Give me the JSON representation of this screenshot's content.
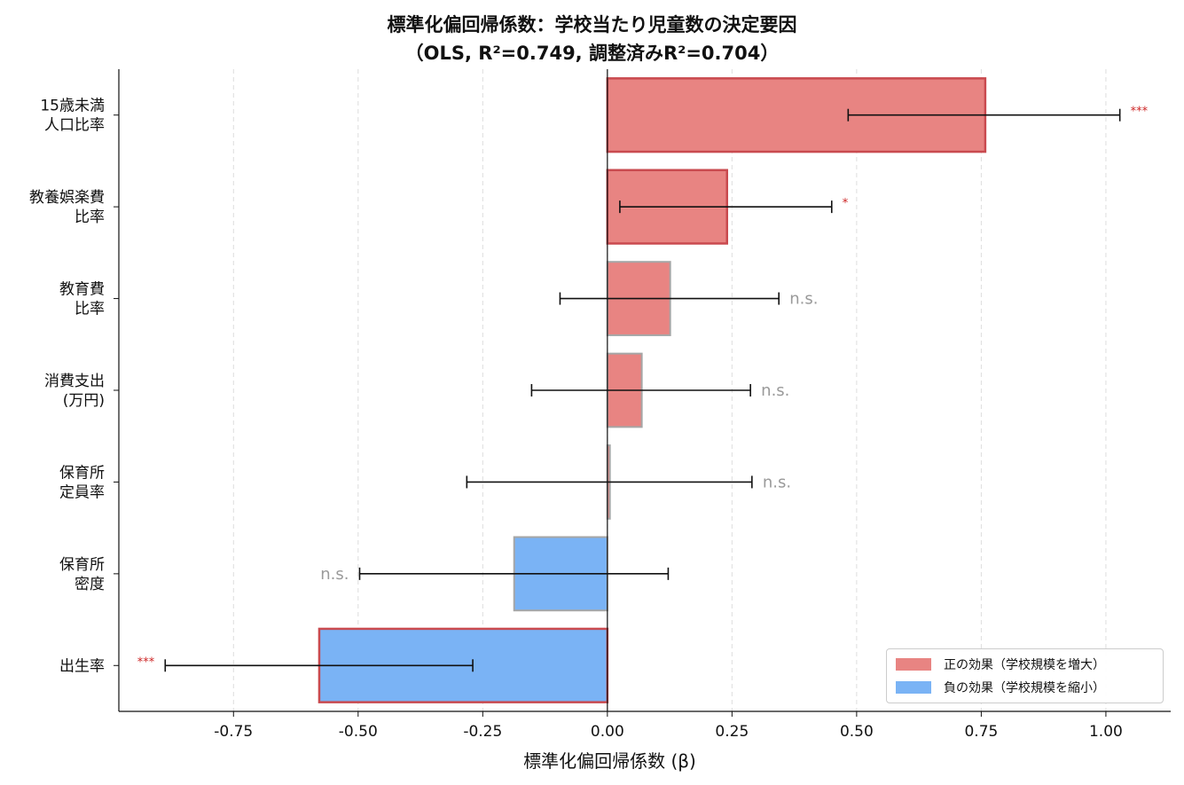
{
  "chart_data": {
    "type": "bar",
    "orientation": "horizontal",
    "title_line1": "標準化偏回帰係数：学校当たり児童数の決定要因",
    "title_line2": "（OLS, R²=0.749, 調整済みR²=0.704）",
    "xlabel": "標準化偏回帰係数 (β)",
    "ylabel": "",
    "xlim": [
      -0.98,
      1.13
    ],
    "xticks": [
      "-0.75",
      "-0.50",
      "-0.25",
      "0.00",
      "0.25",
      "0.50",
      "0.75",
      "1.00"
    ],
    "grid": "vertical dashed",
    "legend_position": "bottom-right",
    "bars": [
      {
        "label": [
          "15歳未満",
          "人口比率"
        ],
        "value": 0.758,
        "ci": [
          0.483,
          1.028
        ],
        "sig": "***",
        "effect": "positive",
        "significant": true
      },
      {
        "label": [
          "教養娯楽費",
          "比率"
        ],
        "value": 0.24,
        "ci": [
          0.025,
          0.45
        ],
        "sig": "*",
        "effect": "positive",
        "significant": true
      },
      {
        "label": [
          "教育費",
          "比率"
        ],
        "value": 0.126,
        "ci": [
          -0.095,
          0.344
        ],
        "sig": "n.s.",
        "effect": "positive",
        "significant": false
      },
      {
        "label": [
          "消費支出",
          "(万円)"
        ],
        "value": 0.069,
        "ci": [
          -0.152,
          0.287
        ],
        "sig": "n.s.",
        "effect": "positive",
        "significant": false
      },
      {
        "label": [
          "保育所",
          "定員率"
        ],
        "value": 0.005,
        "ci": [
          -0.282,
          0.29
        ],
        "sig": "n.s.",
        "effect": "positive",
        "significant": false
      },
      {
        "label": [
          "保育所",
          "密度"
        ],
        "value": -0.187,
        "ci": [
          -0.497,
          0.122
        ],
        "sig": "n.s.",
        "effect": "negative",
        "significant": false
      },
      {
        "label": [
          "出生率"
        ],
        "value": -0.578,
        "ci": [
          -0.887,
          -0.27
        ],
        "sig": "***",
        "effect": "negative",
        "significant": true
      }
    ],
    "legend": [
      {
        "key": "positive",
        "label": "正の効果（学校規模を増大）"
      },
      {
        "key": "negative",
        "label": "負の効果（学校規模を縮小）"
      }
    ],
    "colors": {
      "positive": "#e88482",
      "negative": "#7ab3f5",
      "sig_edge": "#c94a4f",
      "ns_edge": "#a6a6a6",
      "sig_text": "#cc2222",
      "ns_text": "#9a9a9a",
      "grid": "#dddddd"
    }
  }
}
